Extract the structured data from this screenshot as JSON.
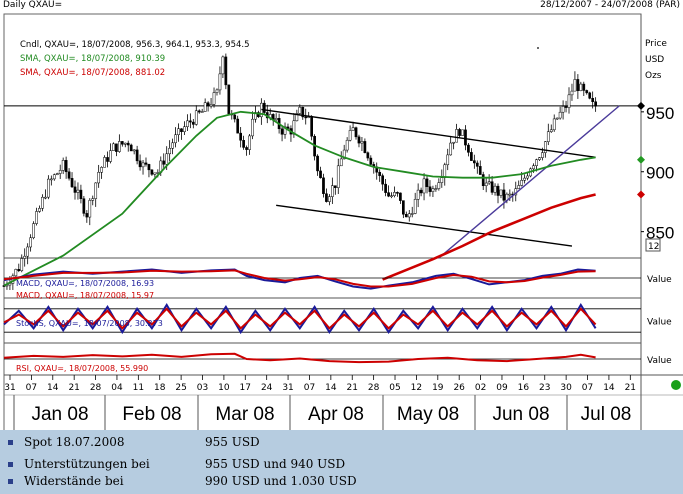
{
  "header": {
    "title": "Daily QXAU=",
    "date_range": "28/12/2007 - 24/07/2008 (PAR)"
  },
  "chart_data": [
    {
      "type": "candlestick",
      "legend": [
        {
          "text": "Cndl, QXAU=, 18/07/2008, 956.3, 964.1, 953.3, 954.5",
          "color": "#000000"
        },
        {
          "text": "SMA, QXAU=, 18/07/2008, 910.39",
          "color": "#228b22"
        },
        {
          "text": "SMA, QXAU=, 18/07/2008, 881.02",
          "color": "#cc0000"
        }
      ],
      "axis_title": [
        "Price",
        "USD",
        "Ozs"
      ],
      "y_ticks": [
        "950",
        "900",
        "850"
      ],
      "y_scale_box": "12",
      "ylim": [
        828,
        1030
      ],
      "close_path": [
        [
          0,
          805
        ],
        [
          5,
          820
        ],
        [
          10,
          855
        ],
        [
          15,
          890
        ],
        [
          20,
          905
        ],
        [
          25,
          880
        ],
        [
          28,
          865
        ],
        [
          32,
          900
        ],
        [
          37,
          920
        ],
        [
          42,
          925
        ],
        [
          47,
          905
        ],
        [
          52,
          900
        ],
        [
          57,
          925
        ],
        [
          62,
          940
        ],
        [
          67,
          950
        ],
        [
          72,
          965
        ],
        [
          74,
          1000
        ],
        [
          76,
          950
        ],
        [
          79,
          935
        ],
        [
          82,
          920
        ],
        [
          84,
          940
        ],
        [
          87,
          955
        ],
        [
          90,
          945
        ],
        [
          94,
          935
        ],
        [
          97,
          935
        ],
        [
          100,
          950
        ],
        [
          103,
          945
        ],
        [
          106,
          900
        ],
        [
          109,
          880
        ],
        [
          112,
          890
        ],
        [
          115,
          920
        ],
        [
          118,
          935
        ],
        [
          121,
          925
        ],
        [
          124,
          910
        ],
        [
          127,
          895
        ],
        [
          130,
          880
        ],
        [
          133,
          880
        ],
        [
          136,
          860
        ],
        [
          139,
          875
        ],
        [
          142,
          890
        ],
        [
          145,
          885
        ],
        [
          148,
          900
        ],
        [
          151,
          925
        ],
        [
          154,
          935
        ],
        [
          157,
          920
        ],
        [
          160,
          900
        ],
        [
          163,
          888
        ],
        [
          166,
          885
        ],
        [
          169,
          878
        ],
        [
          172,
          880
        ],
        [
          175,
          890
        ],
        [
          178,
          905
        ],
        [
          181,
          915
        ],
        [
          184,
          930
        ],
        [
          187,
          945
        ],
        [
          190,
          955
        ],
        [
          193,
          975
        ],
        [
          196,
          965
        ],
        [
          199,
          955
        ]
      ],
      "sma_green": [
        [
          0,
          805
        ],
        [
          20,
          830
        ],
        [
          40,
          865
        ],
        [
          55,
          905
        ],
        [
          65,
          930
        ],
        [
          72,
          945
        ],
        [
          80,
          950
        ],
        [
          88,
          948
        ],
        [
          96,
          935
        ],
        [
          105,
          922
        ],
        [
          115,
          912
        ],
        [
          125,
          904
        ],
        [
          135,
          900
        ],
        [
          145,
          896
        ],
        [
          155,
          895
        ],
        [
          165,
          895
        ],
        [
          175,
          898
        ],
        [
          185,
          905
        ],
        [
          195,
          910
        ],
        [
          200,
          912
        ]
      ],
      "sma_red": [
        [
          128,
          810
        ],
        [
          135,
          817
        ],
        [
          145,
          827
        ],
        [
          155,
          838
        ],
        [
          165,
          850
        ],
        [
          175,
          860
        ],
        [
          185,
          870
        ],
        [
          195,
          878
        ],
        [
          200,
          881
        ]
      ],
      "lines": [
        {
          "name": "upper channel",
          "points": [
            [
              87,
              952
            ],
            [
              200,
              912
            ]
          ],
          "color": "#000000"
        },
        {
          "name": "lower channel",
          "points": [
            [
              92,
              872
            ],
            [
              192,
              838
            ]
          ],
          "color": "#000000"
        },
        {
          "name": "uptrend",
          "points": [
            [
              147,
              828
            ],
            [
              208,
              955
            ]
          ],
          "color": "#4a3a9a"
        },
        {
          "name": "horizontal level",
          "value": 955,
          "color": "#000000"
        }
      ],
      "last_markers": [
        {
          "value": 955,
          "color": "#000000"
        },
        {
          "value": 910,
          "color": "#229922"
        },
        {
          "value": 881,
          "color": "#cc0000"
        }
      ]
    },
    {
      "type": "line",
      "indicator": "MACD",
      "legend": [
        {
          "text": "MACD, QXAU=, 18/07/2008, 16.93",
          "color": "#1a1a99"
        },
        {
          "text": "MACD, QXAU=, 18/07/2008, 15.97",
          "color": "#cc0000"
        }
      ],
      "ylabel": "Value",
      "ylim": [
        -40,
        40
      ],
      "reference_line": 0,
      "series": [
        {
          "name": "MACD 16.93",
          "color": "#1a1a99",
          "points": [
            [
              0,
              -5
            ],
            [
              10,
              8
            ],
            [
              20,
              15
            ],
            [
              30,
              10
            ],
            [
              40,
              15
            ],
            [
              50,
              20
            ],
            [
              60,
              12
            ],
            [
              70,
              18
            ],
            [
              78,
              20
            ],
            [
              82,
              5
            ],
            [
              88,
              -5
            ],
            [
              95,
              -10
            ],
            [
              100,
              0
            ],
            [
              106,
              5
            ],
            [
              112,
              -8
            ],
            [
              118,
              -20
            ],
            [
              124,
              -25
            ],
            [
              130,
              -18
            ],
            [
              138,
              -10
            ],
            [
              146,
              5
            ],
            [
              152,
              10
            ],
            [
              158,
              -2
            ],
            [
              164,
              -15
            ],
            [
              170,
              -10
            ],
            [
              176,
              -5
            ],
            [
              182,
              5
            ],
            [
              188,
              10
            ],
            [
              194,
              20
            ],
            [
              200,
              17
            ]
          ]
        },
        {
          "name": "MACD 15.97",
          "color": "#cc0000",
          "points": [
            [
              0,
              -3
            ],
            [
              10,
              5
            ],
            [
              20,
              12
            ],
            [
              30,
              12
            ],
            [
              40,
              13
            ],
            [
              50,
              17
            ],
            [
              60,
              15
            ],
            [
              70,
              16
            ],
            [
              78,
              18
            ],
            [
              82,
              10
            ],
            [
              88,
              0
            ],
            [
              95,
              -6
            ],
            [
              100,
              -3
            ],
            [
              106,
              2
            ],
            [
              112,
              -3
            ],
            [
              118,
              -14
            ],
            [
              124,
              -20
            ],
            [
              130,
              -20
            ],
            [
              138,
              -14
            ],
            [
              146,
              0
            ],
            [
              152,
              7
            ],
            [
              158,
              3
            ],
            [
              164,
              -8
            ],
            [
              170,
              -10
            ],
            [
              176,
              -7
            ],
            [
              182,
              1
            ],
            [
              188,
              7
            ],
            [
              194,
              15
            ],
            [
              200,
              16
            ]
          ]
        }
      ]
    },
    {
      "type": "line",
      "indicator": "StochS",
      "legend": [
        {
          "text": "StochS, QXAU=, 18/07/2008, 30.273",
          "color": "#1a1a99"
        }
      ],
      "ylabel": "Value",
      "ylim": [
        0,
        100
      ],
      "reference_lines": [
        20,
        80
      ],
      "series": [
        {
          "name": "StochS",
          "color": "#1a1a99",
          "points": [
            [
              0,
              40
            ],
            [
              5,
              75
            ],
            [
              10,
              30
            ],
            [
              15,
              85
            ],
            [
              20,
              25
            ],
            [
              25,
              80
            ],
            [
              30,
              30
            ],
            [
              35,
              85
            ],
            [
              40,
              20
            ],
            [
              45,
              80
            ],
            [
              50,
              30
            ],
            [
              55,
              90
            ],
            [
              60,
              25
            ],
            [
              65,
              80
            ],
            [
              70,
              30
            ],
            [
              75,
              85
            ],
            [
              80,
              20
            ],
            [
              85,
              75
            ],
            [
              90,
              25
            ],
            [
              95,
              80
            ],
            [
              100,
              30
            ],
            [
              105,
              85
            ],
            [
              110,
              20
            ],
            [
              115,
              75
            ],
            [
              120,
              25
            ],
            [
              125,
              80
            ],
            [
              130,
              20
            ],
            [
              135,
              75
            ],
            [
              140,
              30
            ],
            [
              145,
              85
            ],
            [
              150,
              25
            ],
            [
              155,
              80
            ],
            [
              160,
              30
            ],
            [
              165,
              85
            ],
            [
              170,
              25
            ],
            [
              175,
              80
            ],
            [
              180,
              30
            ],
            [
              185,
              85
            ],
            [
              190,
              25
            ],
            [
              195,
              90
            ],
            [
              200,
              30
            ]
          ]
        },
        {
          "name": "StochS signal",
          "color": "#cc0000",
          "points": [
            [
              0,
              45
            ],
            [
              5,
              65
            ],
            [
              10,
              40
            ],
            [
              15,
              75
            ],
            [
              20,
              35
            ],
            [
              25,
              70
            ],
            [
              30,
              40
            ],
            [
              35,
              75
            ],
            [
              40,
              30
            ],
            [
              45,
              70
            ],
            [
              50,
              40
            ],
            [
              55,
              80
            ],
            [
              60,
              35
            ],
            [
              65,
              70
            ],
            [
              70,
              40
            ],
            [
              75,
              75
            ],
            [
              80,
              30
            ],
            [
              85,
              65
            ],
            [
              90,
              35
            ],
            [
              95,
              70
            ],
            [
              100,
              40
            ],
            [
              105,
              75
            ],
            [
              110,
              30
            ],
            [
              115,
              65
            ],
            [
              120,
              35
            ],
            [
              125,
              70
            ],
            [
              130,
              30
            ],
            [
              135,
              65
            ],
            [
              140,
              40
            ],
            [
              145,
              75
            ],
            [
              150,
              35
            ],
            [
              155,
              70
            ],
            [
              160,
              40
            ],
            [
              165,
              75
            ],
            [
              170,
              35
            ],
            [
              175,
              70
            ],
            [
              180,
              40
            ],
            [
              185,
              75
            ],
            [
              190,
              35
            ],
            [
              195,
              80
            ],
            [
              200,
              40
            ]
          ]
        }
      ]
    },
    {
      "type": "line",
      "indicator": "RSI",
      "legend": [
        {
          "text": "RSI, QXAU=, 18/07/2008, 55.990",
          "color": "#cc0000"
        }
      ],
      "ylabel": "Value",
      "ylim": [
        0,
        100
      ],
      "reference_line": 50,
      "series": [
        {
          "name": "RSI",
          "color": "#cc0000",
          "points": [
            [
              0,
              55
            ],
            [
              10,
              62
            ],
            [
              20,
              58
            ],
            [
              30,
              65
            ],
            [
              40,
              60
            ],
            [
              50,
              66
            ],
            [
              60,
              58
            ],
            [
              70,
              68
            ],
            [
              78,
              70
            ],
            [
              82,
              50
            ],
            [
              90,
              45
            ],
            [
              100,
              52
            ],
            [
              110,
              42
            ],
            [
              120,
              38
            ],
            [
              130,
              40
            ],
            [
              140,
              50
            ],
            [
              150,
              55
            ],
            [
              160,
              45
            ],
            [
              170,
              42
            ],
            [
              180,
              50
            ],
            [
              190,
              58
            ],
            [
              195,
              66
            ],
            [
              200,
              56
            ]
          ]
        }
      ]
    }
  ],
  "x_axis": {
    "day_ticks": [
      "31",
      "07",
      "14",
      "21",
      "28",
      "04",
      "11",
      "18",
      "25",
      "03",
      "10",
      "17",
      "24",
      "31",
      "07",
      "14",
      "21",
      "28",
      "05",
      "12",
      "19",
      "26",
      "02",
      "09",
      "16",
      "23",
      "30",
      "07",
      "14",
      "21"
    ],
    "months": [
      "Jan 08",
      "Feb 08",
      "Mar 08",
      "Apr 08",
      "May 08",
      "Jun 08",
      "Jul 08"
    ]
  },
  "info_table": [
    {
      "label": "Spot 18.07.2008",
      "value": "955 USD"
    },
    {
      "label": "Unterstützungen bei",
      "value": "955 USD und 940 USD"
    },
    {
      "label": "Widerstände bei",
      "value": "990 USD und 1.030 USD"
    }
  ]
}
